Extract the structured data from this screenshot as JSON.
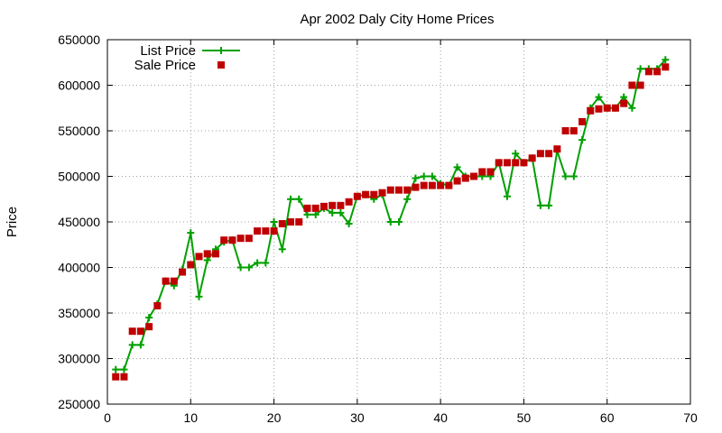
{
  "chart_data": {
    "type": "line",
    "title": "Apr 2002 Daly City Home Prices",
    "xlabel": "",
    "ylabel": "Price",
    "xlim": [
      0,
      70
    ],
    "ylim": [
      250000,
      650000
    ],
    "x_ticks": [
      0,
      10,
      20,
      30,
      40,
      50,
      60,
      70
    ],
    "y_ticks": [
      250000,
      300000,
      350000,
      400000,
      450000,
      500000,
      550000,
      600000,
      650000
    ],
    "grid": true,
    "legend_position": "top-left",
    "series": [
      {
        "name": "List Price",
        "style": "line-plus",
        "color": "#00a000",
        "x": [
          1,
          2,
          3,
          4,
          5,
          6,
          7,
          8,
          9,
          10,
          11,
          12,
          13,
          14,
          15,
          16,
          17,
          18,
          19,
          20,
          21,
          22,
          23,
          24,
          25,
          26,
          27,
          28,
          29,
          30,
          31,
          32,
          33,
          34,
          35,
          36,
          37,
          38,
          39,
          40,
          41,
          42,
          43,
          44,
          45,
          46,
          47,
          48,
          49,
          50,
          51,
          52,
          53,
          54,
          55,
          56,
          57,
          58,
          59,
          60,
          61,
          62,
          63,
          64,
          65,
          66,
          67
        ],
        "values": [
          288000,
          288000,
          315000,
          315000,
          345000,
          360000,
          385000,
          380000,
          398000,
          438000,
          368000,
          408000,
          420000,
          428000,
          430000,
          400000,
          400000,
          405000,
          405000,
          450000,
          420000,
          475000,
          475000,
          458000,
          458000,
          465000,
          460000,
          460000,
          448000,
          478000,
          480000,
          475000,
          480000,
          450000,
          450000,
          475000,
          498000,
          500000,
          500000,
          492000,
          490000,
          510000,
          500000,
          500000,
          500000,
          500000,
          515000,
          478000,
          525000,
          515000,
          520000,
          468000,
          468000,
          528000,
          500000,
          500000,
          540000,
          575000,
          587000,
          575000,
          575000,
          587000,
          575000,
          618000,
          618000,
          618000,
          628000
        ]
      },
      {
        "name": "Sale Price",
        "style": "points-square",
        "color": "#c00000",
        "x": [
          1,
          2,
          3,
          4,
          5,
          6,
          7,
          8,
          9,
          10,
          11,
          12,
          13,
          14,
          15,
          16,
          17,
          18,
          19,
          20,
          21,
          22,
          23,
          24,
          25,
          26,
          27,
          28,
          29,
          30,
          31,
          32,
          33,
          34,
          35,
          36,
          37,
          38,
          39,
          40,
          41,
          42,
          43,
          44,
          45,
          46,
          47,
          48,
          49,
          50,
          51,
          52,
          53,
          54,
          55,
          56,
          57,
          58,
          59,
          60,
          61,
          62,
          63,
          64,
          65,
          66,
          67
        ],
        "values": [
          280000,
          280000,
          330000,
          330000,
          335000,
          358000,
          385000,
          385000,
          395000,
          403000,
          412000,
          415000,
          415000,
          430000,
          430000,
          432000,
          432000,
          440000,
          440000,
          440000,
          448000,
          450000,
          450000,
          465000,
          465000,
          467000,
          468000,
          468000,
          472000,
          478000,
          480000,
          480000,
          482000,
          485000,
          485000,
          485000,
          488000,
          490000,
          490000,
          490000,
          490000,
          495000,
          498000,
          500000,
          505000,
          505000,
          515000,
          515000,
          515000,
          515000,
          520000,
          525000,
          525000,
          530000,
          550000,
          550000,
          560000,
          572000,
          574000,
          575000,
          575000,
          580000,
          600000,
          600000,
          615000,
          615000,
          620000
        ]
      }
    ]
  }
}
